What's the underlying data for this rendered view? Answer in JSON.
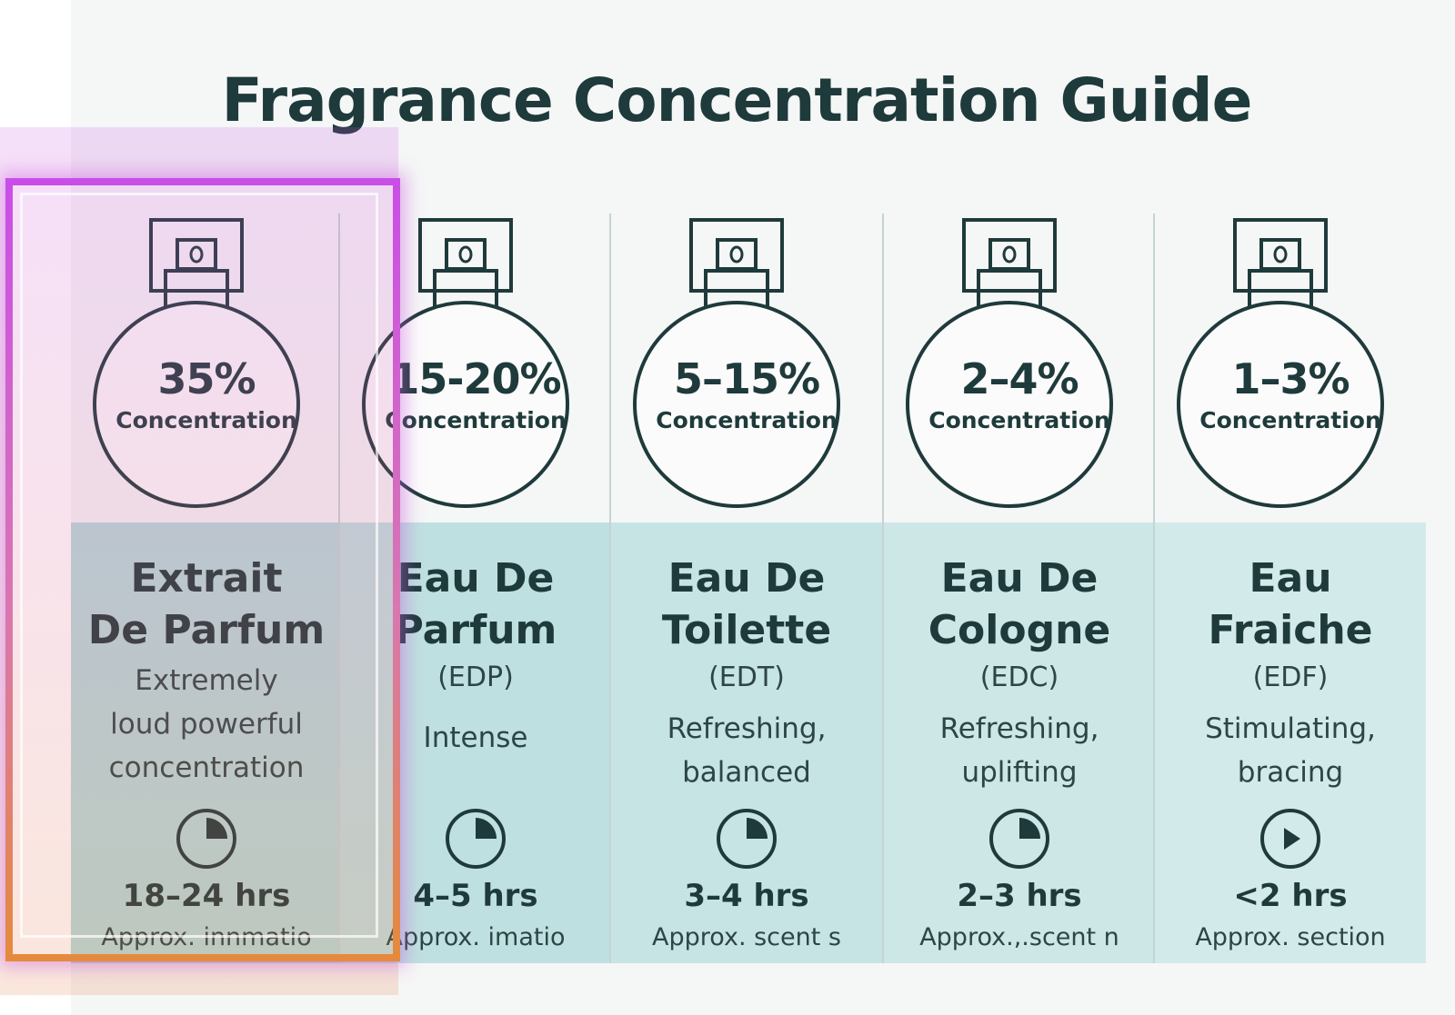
{
  "title": "Fragrance Concentration Guide",
  "colors": {
    "text": "#1e3a3b",
    "panel": [
      "#b6dbdb",
      "#bfe0e0",
      "#c7e4e4",
      "#cde7e7",
      "#d3eaea"
    ],
    "highlight_top": "#c94ee8",
    "highlight_bottom": "#e58a3c"
  },
  "columns": [
    {
      "percent": "35%",
      "concentration_label": "Concentration",
      "name_line1": "Extrait",
      "name_line2": "De Parfum",
      "abbr": "",
      "description": [
        "Extremely",
        "loud powerful",
        "concentration"
      ],
      "clock_icon": "clock-quarter-icon",
      "duration": "18–24 hrs",
      "approx": "Approx. innmatio",
      "highlighted": true
    },
    {
      "percent": "15-20%",
      "concentration_label": "Concentration",
      "name_line1": "Eau De",
      "name_line2": "Parfum",
      "abbr": "(EDP)",
      "description": [
        "Intense"
      ],
      "clock_icon": "clock-quarter-icon",
      "duration": "4–5 hrs",
      "approx": "Approx. imatio"
    },
    {
      "percent": "5–15%",
      "concentration_label": "Concentration",
      "name_line1": "Eau De",
      "name_line2": "Toilette",
      "abbr": "(EDT)",
      "description": [
        "Refreshing,",
        "balanced"
      ],
      "clock_icon": "clock-quarter-icon",
      "duration": "3–4 hrs",
      "approx": "Approx. scent s"
    },
    {
      "percent": "2–4%",
      "concentration_label": "Concentration",
      "name_line1": "Eau De",
      "name_line2": "Cologne",
      "abbr": "(EDC)",
      "description": [
        "Refreshing,",
        "uplifting"
      ],
      "clock_icon": "clock-quarter-icon",
      "duration": "2–3 hrs",
      "approx": "Approx.,.scent n"
    },
    {
      "percent": "1–3%",
      "concentration_label": "Concentration",
      "name_line1": "Eau",
      "name_line2": "Fraiche",
      "abbr": "(EDF)",
      "description": [
        "Stimulating,",
        "bracing"
      ],
      "clock_icon": "play-circle-icon",
      "duration": "<2 hrs",
      "approx": "Approx. section"
    }
  ]
}
